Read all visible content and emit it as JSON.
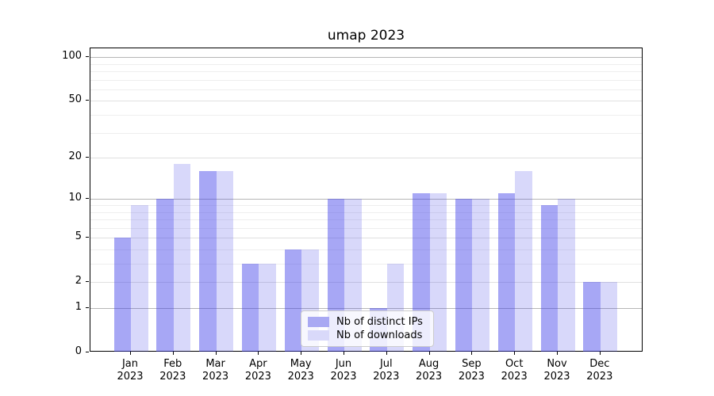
{
  "title": "umap 2023",
  "chart_data": {
    "type": "bar",
    "title": "umap 2023",
    "categories": [
      "Jan 2023",
      "Feb 2023",
      "Mar 2023",
      "Apr 2023",
      "May 2023",
      "Jun 2023",
      "Jul 2023",
      "Aug 2023",
      "Sep 2023",
      "Oct 2023",
      "Nov 2023",
      "Dec 2023"
    ],
    "months": [
      "Jan",
      "Feb",
      "Mar",
      "Apr",
      "May",
      "Jun",
      "Jul",
      "Aug",
      "Sep",
      "Oct",
      "Nov",
      "Dec"
    ],
    "x_tick_year": "2023",
    "series": [
      {
        "name": "Nb of distinct IPs",
        "color": "#a9a9f3",
        "fill": "rgba(60,60,232,0.45)",
        "values": [
          5,
          10,
          16,
          3,
          4,
          10,
          1,
          11,
          10,
          11,
          9,
          2
        ]
      },
      {
        "name": "Nb of downloads",
        "color": "#d9d9fa",
        "fill": "rgba(60,60,232,0.20)",
        "values": [
          9,
          18,
          16,
          3,
          4,
          10,
          3,
          11,
          10,
          16,
          10,
          2
        ]
      }
    ],
    "y_axis": {
      "scale": "log10(1+x)",
      "ticks": [
        100,
        50,
        20,
        10,
        5,
        2,
        1,
        0
      ],
      "tick_labels": [
        "100",
        "50",
        "20",
        "10",
        "5",
        "2",
        "1",
        "0"
      ],
      "major_ticks": [
        1,
        10,
        100
      ],
      "minor_gridlines": [
        3,
        4,
        6,
        7,
        8,
        9,
        30,
        40,
        60,
        70,
        80,
        90
      ],
      "ymin": 0,
      "ymax": 115
    },
    "legend": {
      "position": "lower center",
      "entries": [
        "Nb of distinct IPs",
        "Nb of downloads"
      ]
    },
    "grid": true,
    "xlabel": "",
    "ylabel": ""
  },
  "colors": {
    "grid_major": "#b6b6b6",
    "grid_labeled": "#e0e0e0",
    "grid_minor": "#eeeeee",
    "axis": "#000000",
    "background": "#ffffff"
  }
}
